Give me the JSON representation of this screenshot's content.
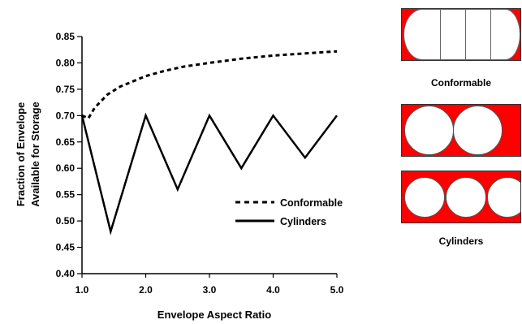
{
  "chart_data": {
    "type": "line",
    "title": "",
    "xlabel": "Envelope Aspect Ratio",
    "ylabel_lines": [
      "Fraction of Envelope",
      "Available for Storage"
    ],
    "xlim": [
      1.0,
      5.0
    ],
    "ylim": [
      0.4,
      0.85
    ],
    "x_ticks": [
      1.0,
      2.0,
      3.0,
      4.0,
      5.0
    ],
    "x_tick_labels": [
      "1.0",
      "2.0",
      "3.0",
      "4.0",
      "5.0"
    ],
    "y_ticks": [
      0.4,
      0.45,
      0.5,
      0.55,
      0.6,
      0.65,
      0.7,
      0.75,
      0.8,
      0.85
    ],
    "y_tick_labels": [
      "0.40",
      "0.45",
      "0.50",
      "0.55",
      "0.60",
      "0.65",
      "0.70",
      "0.75",
      "0.80",
      "0.85"
    ],
    "grid": false,
    "legend_position": "center-right",
    "series": [
      {
        "name": "Conformable",
        "style": "dashed",
        "x": [
          1.0,
          1.1,
          1.2,
          1.4,
          1.6,
          1.8,
          2.0,
          2.3,
          2.6,
          3.0,
          3.5,
          4.0,
          4.5,
          5.0
        ],
        "y": [
          0.7,
          0.695,
          0.715,
          0.74,
          0.755,
          0.765,
          0.775,
          0.785,
          0.793,
          0.8,
          0.808,
          0.814,
          0.818,
          0.822
        ]
      },
      {
        "name": "Cylinders",
        "style": "solid",
        "x": [
          1.0,
          1.45,
          2.0,
          2.5,
          3.0,
          3.5,
          4.0,
          4.5,
          5.0
        ],
        "y": [
          0.7,
          0.48,
          0.7,
          0.56,
          0.7,
          0.6,
          0.7,
          0.62,
          0.7
        ]
      }
    ]
  },
  "illustrations": {
    "conformable_caption": "Conformable",
    "cylinders_caption": "Cylinders",
    "fill_color": "#ff0000"
  }
}
